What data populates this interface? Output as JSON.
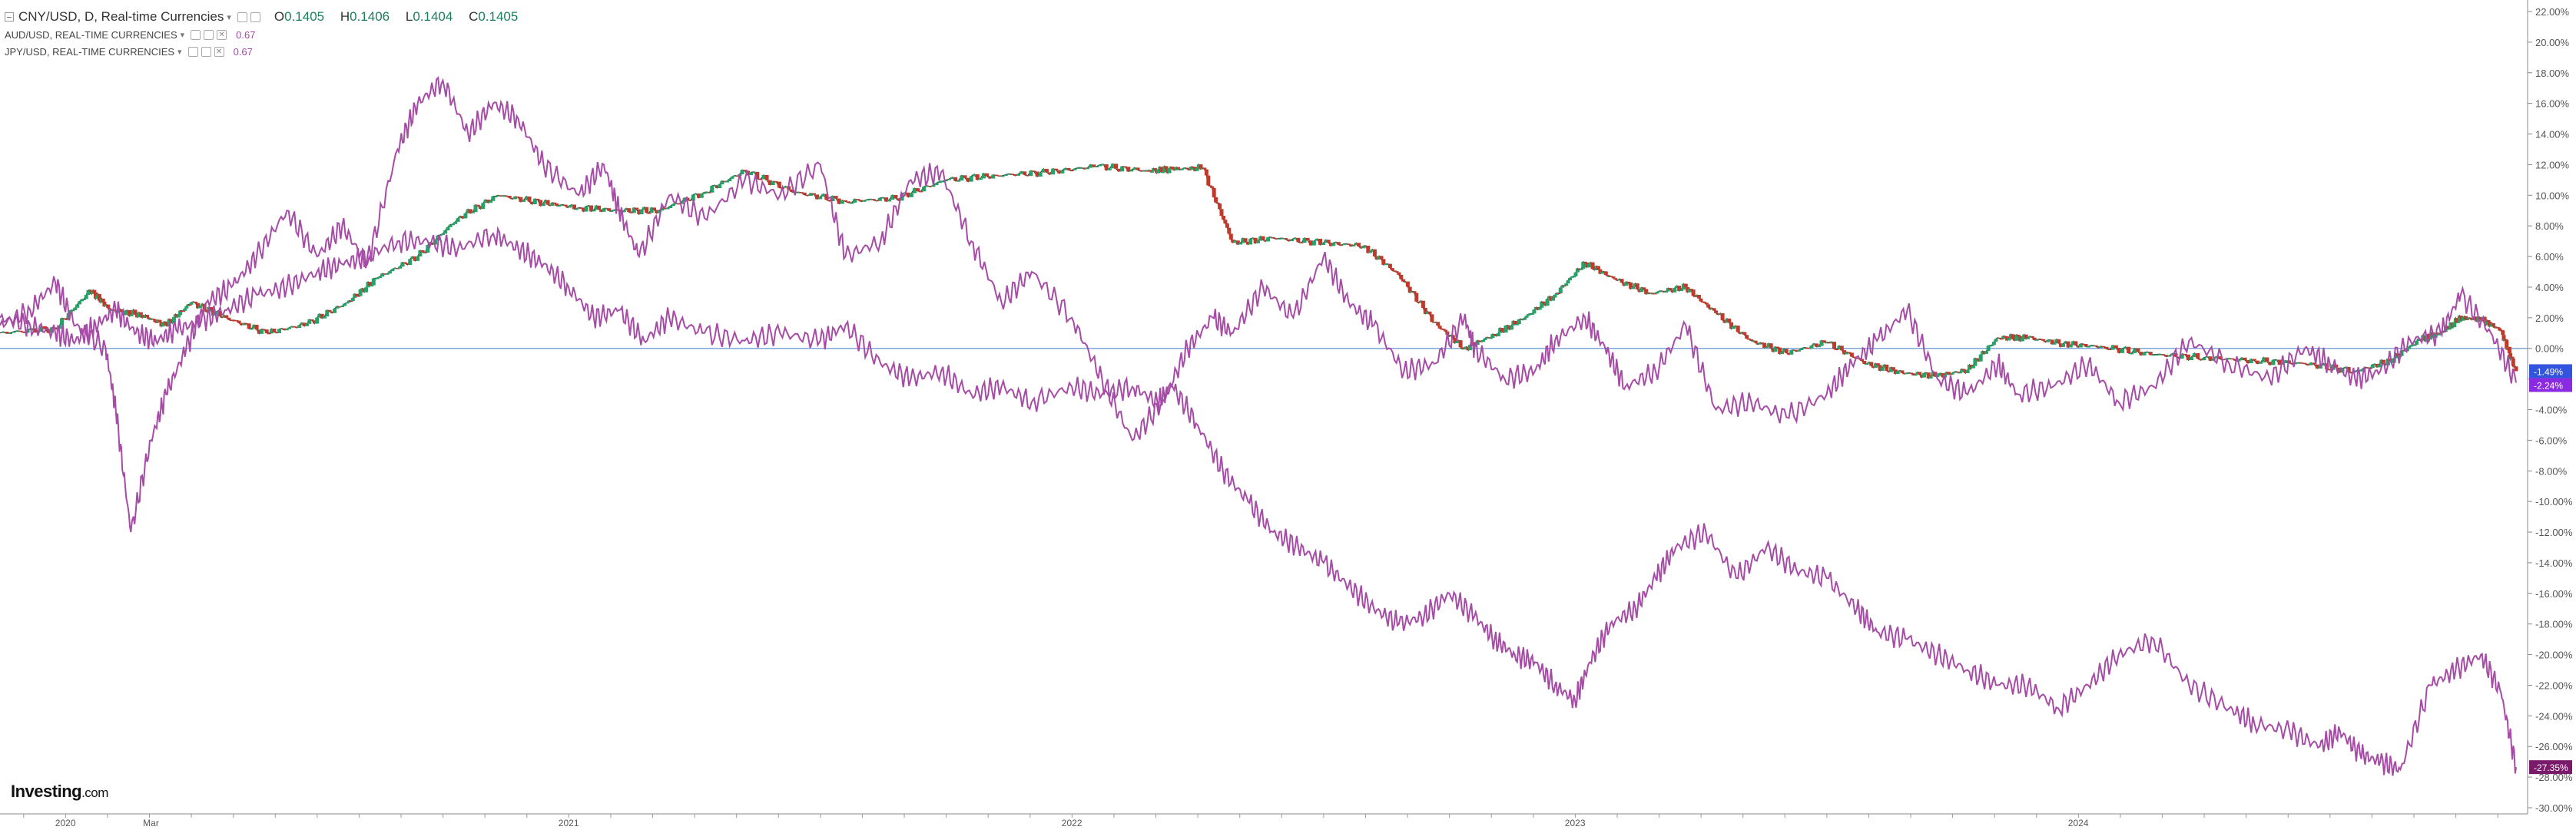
{
  "header": {
    "main_title": "CNY/USD, D, Real-time Currencies",
    "ohlc": {
      "open_label": "O",
      "open": "0.1405",
      "high_label": "H",
      "high": "0.1406",
      "low_label": "L",
      "low": "0.1404",
      "close_label": "C",
      "close": "0.1405"
    },
    "overlays": [
      {
        "label": "AUD/USD, REAL-TIME CURRENCIES",
        "value": "0.67"
      },
      {
        "label": "JPY/USD, REAL-TIME CURRENCIES",
        "value": "0.67"
      }
    ]
  },
  "logo": {
    "brand": "Investing",
    "suffix": ".com"
  },
  "colors": {
    "background": "#ffffff",
    "candle_up": "#26a269",
    "candle_down": "#c0392b",
    "overlay_line": "#a64ca6",
    "zero_line": "#7fa8d8",
    "axis_text": "#555555",
    "badge_cny": "#3355dd",
    "badge_aud": "#8a2be2",
    "badge_jpy": "#7a1a6a"
  },
  "chart_data": {
    "type": "line",
    "x_axis_labels": [
      "2020",
      "Mar",
      "2021",
      "2022",
      "2023",
      "2024"
    ],
    "y_axis": {
      "unit": "%",
      "ylim": [
        -30,
        22
      ],
      "ticks": [
        22,
        20,
        18,
        16,
        14,
        12,
        10,
        8,
        6,
        4,
        2,
        0,
        -2,
        -4,
        -6,
        -8,
        -10,
        -12,
        -14,
        -16,
        -18,
        -20,
        -22,
        -24,
        -26,
        -28,
        -30
      ],
      "tick_labels": [
        "22.00%",
        "20.00%",
        "18.00%",
        "16.00%",
        "14.00%",
        "12.00%",
        "10.00%",
        "8.00%",
        "6.00%",
        "4.00%",
        "2.00%",
        "0.00%",
        "-2.00%",
        "-4.00%",
        "-6.00%",
        "-8.00%",
        "-10.00%",
        "-12.00%",
        "-14.00%",
        "-16.00%",
        "-18.00%",
        "-20.00%",
        "-22.00%",
        "-24.00%",
        "-26.00%",
        "-28.00%",
        "-30.00%"
      ]
    },
    "x_range": [
      2019.87,
      2024.87
    ],
    "baseline": 0,
    "series": [
      {
        "key": "cny",
        "style": "candles",
        "x": [
          2019.87,
          2019.98,
          2020.05,
          2020.09,
          2020.15,
          2020.2,
          2020.25,
          2020.32,
          2020.4,
          2020.48,
          2020.56,
          2020.62,
          2020.7,
          2020.78,
          2020.86,
          2020.95,
          2021.02,
          2021.1,
          2021.18,
          2021.27,
          2021.35,
          2021.45,
          2021.55,
          2021.65,
          2021.75,
          2021.85,
          2021.95,
          2022.05,
          2022.15,
          2022.2,
          2022.26,
          2022.32,
          2022.4,
          2022.5,
          2022.58,
          2022.65,
          2022.72,
          2022.78,
          2022.84,
          2022.9,
          2022.96,
          2023.02,
          2023.08,
          2023.15,
          2023.22,
          2023.28,
          2023.35,
          2023.42,
          2023.5,
          2023.58,
          2023.65,
          2023.72,
          2023.78,
          2023.84,
          2023.9,
          2023.97,
          2024.05,
          2024.15,
          2024.25,
          2024.35,
          2024.45,
          2024.55,
          2024.62,
          2024.68,
          2024.72,
          2024.76,
          2024.8,
          2024.84,
          2024.87
        ],
        "y": [
          1.0,
          1.3,
          3.8,
          2.5,
          2.2,
          1.5,
          3.0,
          2.0,
          1.0,
          1.6,
          3.0,
          4.6,
          6.0,
          8.5,
          10.0,
          9.5,
          9.2,
          9.0,
          9.0,
          10.2,
          11.6,
          10.2,
          9.6,
          9.8,
          11.0,
          11.3,
          11.5,
          11.9,
          11.6,
          11.7,
          11.8,
          6.9,
          7.2,
          6.9,
          6.7,
          4.8,
          1.7,
          0.0,
          0.9,
          2.0,
          3.5,
          5.6,
          4.5,
          3.6,
          4.0,
          2.3,
          0.5,
          -0.3,
          0.4,
          -1.0,
          -1.6,
          -1.8,
          -1.4,
          0.7,
          0.7,
          0.3,
          0.1,
          -0.4,
          -0.6,
          -0.8,
          -1.0,
          -1.5,
          -0.8,
          0.6,
          1.0,
          2.0,
          1.9,
          1.2,
          -1.49
        ]
      },
      {
        "key": "aud",
        "style": "line",
        "x": [
          2019.87,
          2019.93,
          2019.98,
          2020.02,
          2020.08,
          2020.1,
          2020.13,
          2020.17,
          2020.2,
          2020.24,
          2020.28,
          2020.33,
          2020.38,
          2020.44,
          2020.5,
          2020.55,
          2020.6,
          2020.66,
          2020.7,
          2020.75,
          2020.8,
          2020.85,
          2020.9,
          2020.95,
          2021.02,
          2021.07,
          2021.1,
          2021.14,
          2021.2,
          2021.27,
          2021.35,
          2021.42,
          2021.5,
          2021.55,
          2021.62,
          2021.68,
          2021.74,
          2021.8,
          2021.86,
          2021.92,
          2022.0,
          2022.06,
          2022.12,
          2022.18,
          2022.23,
          2022.28,
          2022.32,
          2022.38,
          2022.44,
          2022.5,
          2022.55,
          2022.6,
          2022.66,
          2022.72,
          2022.78,
          2022.8,
          2022.86,
          2022.92,
          2022.96,
          2023.02,
          2023.06,
          2023.1,
          2023.16,
          2023.22,
          2023.28,
          2023.35,
          2023.42,
          2023.5,
          2023.55,
          2023.6,
          2023.66,
          2023.72,
          2023.78,
          2023.84,
          2023.88,
          2023.95,
          2024.02,
          2024.08,
          2024.15,
          2024.22,
          2024.3,
          2024.38,
          2024.45,
          2024.5,
          2024.55,
          2024.6,
          2024.66,
          2024.72,
          2024.76,
          2024.82,
          2024.87
        ],
        "y": [
          1.5,
          2.5,
          4.3,
          1.5,
          0.0,
          -4.0,
          -12.0,
          -6.0,
          -3.0,
          0.0,
          3.0,
          4.0,
          6.0,
          9.0,
          6.0,
          8.0,
          5.5,
          13.0,
          16.0,
          17.5,
          14.0,
          16.0,
          15.0,
          12.0,
          10.0,
          12.0,
          9.0,
          6.0,
          10.0,
          8.5,
          11.0,
          10.0,
          12.0,
          6.0,
          7.0,
          11.0,
          11.5,
          7.0,
          3.0,
          5.0,
          2.0,
          -2.0,
          -6.0,
          -3.5,
          0.0,
          2.0,
          1.0,
          4.0,
          2.0,
          6.0,
          3.0,
          1.5,
          -1.5,
          -1.0,
          2.0,
          0.0,
          -2.0,
          -1.5,
          0.5,
          2.0,
          0.0,
          -2.5,
          -1.5,
          1.5,
          -4.0,
          -3.5,
          -4.5,
          -3.0,
          -1.0,
          0.5,
          2.5,
          -2.0,
          -3.0,
          -1.0,
          -3.0,
          -2.5,
          -1.0,
          -3.5,
          -2.5,
          0.5,
          -1.0,
          -2.0,
          0.0,
          -1.0,
          -2.0,
          -1.5,
          0.5,
          1.0,
          3.5,
          1.0,
          -2.24
        ]
      },
      {
        "key": "jpy",
        "style": "line",
        "x": [
          2019.87,
          2019.93,
          2019.98,
          2020.02,
          2020.06,
          2020.1,
          2020.14,
          2020.18,
          2020.22,
          2020.27,
          2020.32,
          2020.38,
          2020.44,
          2020.5,
          2020.55,
          2020.6,
          2020.66,
          2020.72,
          2020.78,
          2020.85,
          2020.9,
          2020.95,
          2021.0,
          2021.05,
          2021.1,
          2021.15,
          2021.2,
          2021.27,
          2021.35,
          2021.42,
          2021.5,
          2021.55,
          2021.62,
          2021.68,
          2021.74,
          2021.8,
          2021.86,
          2021.92,
          2022.0,
          2022.06,
          2022.12,
          2022.17,
          2022.2,
          2022.25,
          2022.3,
          2022.35,
          2022.4,
          2022.45,
          2022.5,
          2022.55,
          2022.6,
          2022.65,
          2022.7,
          2022.75,
          2022.8,
          2022.84,
          2022.88,
          2022.92,
          2022.96,
          2023.0,
          2023.03,
          2023.07,
          2023.12,
          2023.16,
          2023.2,
          2023.26,
          2023.32,
          2023.38,
          2023.44,
          2023.5,
          2023.56,
          2023.6,
          2023.66,
          2023.72,
          2023.78,
          2023.84,
          2023.9,
          2023.96,
          2024.02,
          2024.08,
          2024.15,
          2024.22,
          2024.3,
          2024.35,
          2024.42,
          2024.48,
          2024.52,
          2024.56,
          2024.6,
          2024.64,
          2024.7,
          2024.75,
          2024.8,
          2024.84,
          2024.87
        ],
        "y": [
          2.0,
          1.5,
          1.0,
          0.5,
          1.5,
          2.5,
          1.0,
          0.5,
          1.2,
          1.8,
          2.5,
          3.5,
          4.0,
          5.0,
          5.5,
          6.0,
          7.0,
          7.0,
          6.5,
          7.5,
          6.5,
          5.5,
          4.0,
          2.0,
          2.5,
          0.5,
          2.0,
          1.0,
          0.5,
          1.0,
          0.5,
          1.5,
          -1.0,
          -2.0,
          -1.5,
          -3.0,
          -2.5,
          -3.5,
          -2.5,
          -3.0,
          -2.5,
          -3.5,
          -2.5,
          -5.0,
          -8.0,
          -10.0,
          -12.0,
          -13.0,
          -14.0,
          -15.5,
          -17.0,
          -18.0,
          -17.5,
          -16.0,
          -17.5,
          -19.0,
          -20.0,
          -20.5,
          -22.0,
          -23.0,
          -20.5,
          -18.0,
          -17.0,
          -15.0,
          -13.0,
          -12.0,
          -15.0,
          -13.0,
          -14.5,
          -15.0,
          -17.0,
          -18.5,
          -19.0,
          -20.0,
          -21.0,
          -22.0,
          -22.0,
          -23.5,
          -22.0,
          -20.0,
          -19.0,
          -22.0,
          -23.5,
          -24.5,
          -25.0,
          -26.0,
          -25.0,
          -26.5,
          -27.0,
          -27.5,
          -22.0,
          -21.0,
          -20.0,
          -22.5,
          -27.35
        ]
      }
    ],
    "badges": [
      {
        "series": "cny",
        "value": -1.49,
        "label": "-1.49%"
      },
      {
        "series": "aud",
        "value": -2.24,
        "label": "-2.24%"
      },
      {
        "series": "jpy",
        "value": -27.35,
        "label": "-27.35%"
      }
    ]
  }
}
